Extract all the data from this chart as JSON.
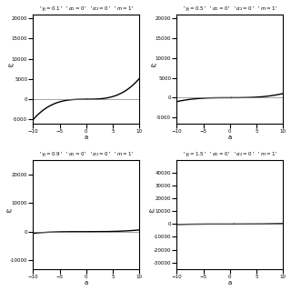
{
  "subplots": [
    {
      "gamma": 0.1,
      "title": "'$\\gamma_j = 0.1$' '$\\alpha_1 = 0$' '$\\alpha_2 = 0$' '$m = 1$'",
      "ylim": [
        -6000,
        21000
      ],
      "yticks": [
        -5000,
        0,
        5000,
        10000,
        15000,
        20000
      ]
    },
    {
      "gamma": 0.5,
      "title": "'$\\gamma_j = 0.5$' '$\\alpha_1 = 0$' '$\\alpha_2 = 0$' '$m = 1$'",
      "ylim": [
        -6500,
        21000
      ],
      "yticks": [
        -5000,
        0,
        5000,
        10000,
        15000,
        20000
      ]
    },
    {
      "gamma": 0.9,
      "title": "'$\\gamma_j = 0.9$' '$\\alpha_1 = 0$' '$\\alpha_2 = 0$' '$m = 1$'",
      "ylim": [
        -13000,
        25000
      ],
      "yticks": [
        -10000,
        0,
        10000,
        20000
      ]
    },
    {
      "gamma": 1.5,
      "title": "'$\\gamma_j = 1.5$' '$\\alpha_1 = 0$' '$\\alpha_2 = 0$' '$m = 1$'",
      "ylim": [
        -35000,
        50000
      ],
      "yticks": [
        -30000,
        -20000,
        -10000,
        0,
        10000,
        20000,
        30000,
        40000
      ]
    }
  ],
  "xlabel": "a",
  "ylabel": "$\\omega$",
  "xlim": [
    -10,
    10
  ],
  "line_color": "black",
  "line_width": 1.0,
  "bg_color": "white",
  "alpha1": 0,
  "alpha2": 0,
  "m": 1
}
